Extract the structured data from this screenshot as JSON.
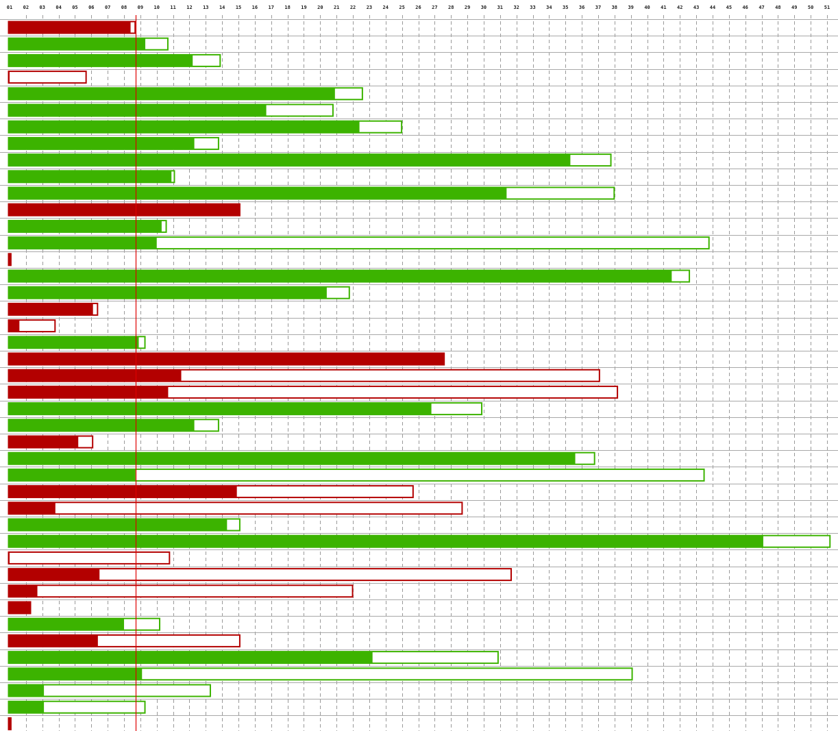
{
  "chart_data": {
    "type": "bar",
    "orientation": "horizontal",
    "title": "",
    "xlabel": "",
    "ylabel": "",
    "x_ticks": [
      "01",
      "02",
      "03",
      "04",
      "05",
      "06",
      "07",
      "08",
      "09",
      "10",
      "11",
      "12",
      "13",
      "14",
      "15",
      "16",
      "17",
      "18",
      "19",
      "20",
      "21",
      "22",
      "23",
      "24",
      "25",
      "26",
      "27",
      "28",
      "29",
      "30",
      "31",
      "32",
      "33",
      "34",
      "35",
      "36",
      "37",
      "38",
      "39",
      "40",
      "41",
      "42",
      "43",
      "44",
      "45",
      "46",
      "47",
      "48",
      "49",
      "50",
      "51"
    ],
    "xlim": [
      1,
      51
    ],
    "grid": {
      "vertical": "dashed",
      "horizontal": "solid"
    },
    "marker_line": 8.7,
    "colors": {
      "green": "#3cb300",
      "red": "#b30000",
      "grid": "#999999",
      "marker": "#dd0000"
    },
    "bars": [
      {
        "filled": 8.4,
        "total": 8.7,
        "status": "red"
      },
      {
        "filled": 9.3,
        "total": 10.7,
        "status": "green"
      },
      {
        "filled": 12.2,
        "total": 13.9,
        "status": "green"
      },
      {
        "filled": 1.0,
        "total": 5.7,
        "status": "red"
      },
      {
        "filled": 20.9,
        "total": 22.6,
        "status": "green"
      },
      {
        "filled": 16.7,
        "total": 20.8,
        "status": "green"
      },
      {
        "filled": 22.4,
        "total": 25.0,
        "status": "green"
      },
      {
        "filled": 12.3,
        "total": 13.8,
        "status": "green"
      },
      {
        "filled": 35.3,
        "total": 37.8,
        "status": "green"
      },
      {
        "filled": 10.9,
        "total": 11.1,
        "status": "green"
      },
      {
        "filled": 31.4,
        "total": 38.0,
        "status": "green"
      },
      {
        "filled": 15.1,
        "total": 15.1,
        "status": "red"
      },
      {
        "filled": 10.3,
        "total": 10.6,
        "status": "green"
      },
      {
        "filled": 10.0,
        "total": 43.8,
        "status": "green"
      },
      {
        "filled": 1.1,
        "total": 1.1,
        "status": "red"
      },
      {
        "filled": 41.5,
        "total": 42.6,
        "status": "green"
      },
      {
        "filled": 20.4,
        "total": 21.8,
        "status": "green"
      },
      {
        "filled": 6.1,
        "total": 6.4,
        "status": "red"
      },
      {
        "filled": 1.6,
        "total": 3.8,
        "status": "red"
      },
      {
        "filled": 8.9,
        "total": 9.3,
        "status": "green"
      },
      {
        "filled": 27.6,
        "total": 27.6,
        "status": "red"
      },
      {
        "filled": 11.5,
        "total": 37.1,
        "status": "red"
      },
      {
        "filled": 10.7,
        "total": 38.2,
        "status": "red"
      },
      {
        "filled": 26.8,
        "total": 29.9,
        "status": "green"
      },
      {
        "filled": 12.3,
        "total": 13.8,
        "status": "green"
      },
      {
        "filled": 5.2,
        "total": 6.1,
        "status": "red"
      },
      {
        "filled": 35.6,
        "total": 36.8,
        "status": "green"
      },
      {
        "filled": 8.7,
        "total": 43.5,
        "status": "green"
      },
      {
        "filled": 14.9,
        "total": 25.7,
        "status": "red"
      },
      {
        "filled": 3.8,
        "total": 28.7,
        "status": "red"
      },
      {
        "filled": 14.3,
        "total": 15.1,
        "status": "green"
      },
      {
        "filled": 47.1,
        "total": 51.2,
        "status": "green"
      },
      {
        "filled": 1.0,
        "total": 10.8,
        "status": "red"
      },
      {
        "filled": 6.5,
        "total": 31.7,
        "status": "red"
      },
      {
        "filled": 2.7,
        "total": 22.0,
        "status": "red"
      },
      {
        "filled": 2.3,
        "total": 2.3,
        "status": "red"
      },
      {
        "filled": 8.0,
        "total": 10.2,
        "status": "green"
      },
      {
        "filled": 6.4,
        "total": 15.1,
        "status": "red"
      },
      {
        "filled": 23.2,
        "total": 30.9,
        "status": "green"
      },
      {
        "filled": 9.1,
        "total": 39.1,
        "status": "green"
      },
      {
        "filled": 3.1,
        "total": 13.3,
        "status": "green"
      },
      {
        "filled": 3.1,
        "total": 9.3,
        "status": "green"
      },
      {
        "filled": 1.1,
        "total": 1.1,
        "status": "red"
      }
    ]
  }
}
